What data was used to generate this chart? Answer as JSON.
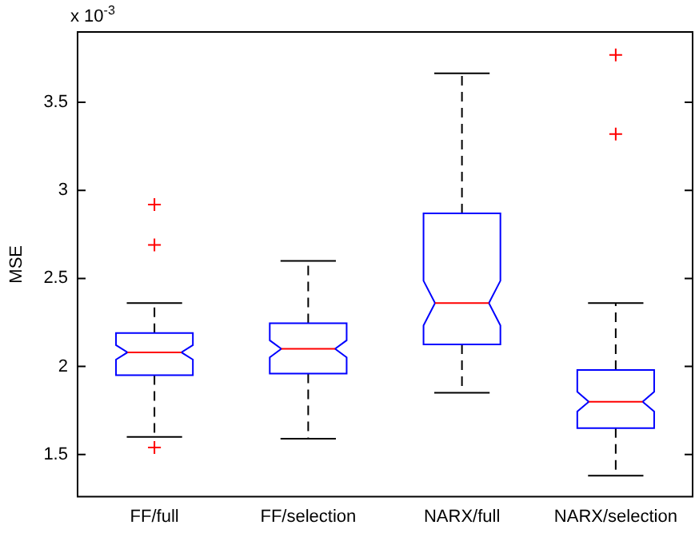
{
  "chart_data": {
    "type": "box",
    "ylabel": "MSE",
    "annotations": [
      "x 10$^{-3}$"
    ],
    "color": "#0000ff",
    "categories": [
      "FF/full",
      "FF/selection",
      "NARX/full",
      "NARX/selection"
    ],
    "boxes": [
      {
        "low": 1.6,
        "q1": 1.95,
        "median": 2.08,
        "q3": 2.19,
        "high": 2.36,
        "outliers": [
          2.92,
          2.69,
          1.54
        ]
      },
      {
        "low": 1.59,
        "q1": 1.96,
        "median": 2.1,
        "q3": 2.245,
        "high": 2.6
      },
      {
        "low": 1.85,
        "q1": 2.125,
        "median": 2.36,
        "q3": 2.87,
        "high": 3.665
      },
      {
        "low": 1.38,
        "q1": 1.65,
        "median": 1.8,
        "q3": 1.98,
        "high": 2.36,
        "outliers": [
          3.77,
          3.32
        ]
      }
    ],
    "ylim": [
      1.26,
      3.9
    ],
    "yticks": [
      1.5,
      2,
      2.5,
      3,
      3.5
    ],
    "grid": false
  }
}
